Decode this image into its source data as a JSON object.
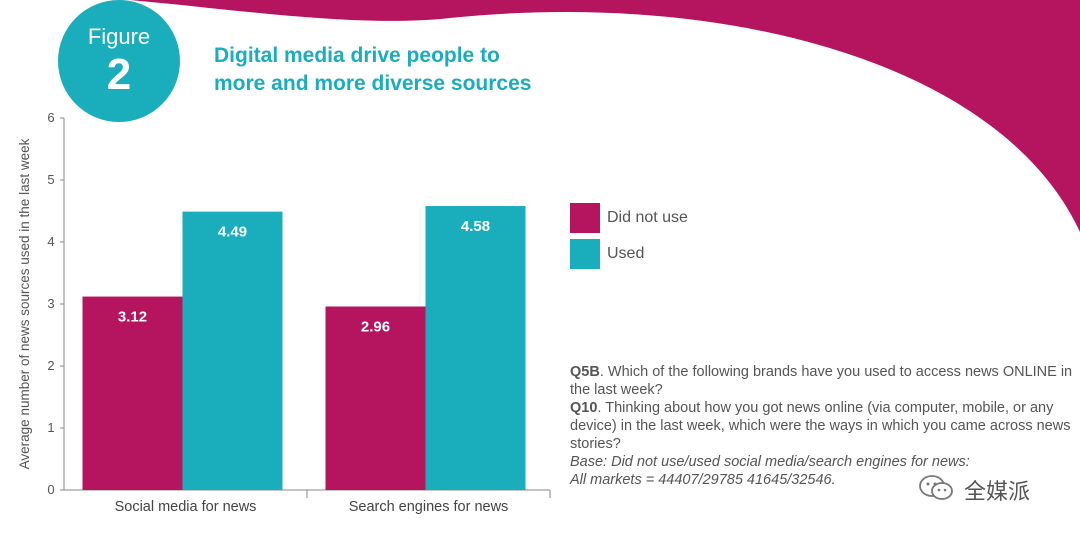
{
  "badge": {
    "word": "Figure",
    "number": "2"
  },
  "title": {
    "line1": "Digital media drive people to",
    "line2": "more and more diverse sources"
  },
  "colors": {
    "did_not_use": "#b5155f",
    "used": "#1aaebd",
    "accent_bg": "#b5155f"
  },
  "chart_data": {
    "type": "bar",
    "title": "Digital media drive people to more and more diverse sources",
    "categories": [
      "Social media for news",
      "Search engines for news"
    ],
    "series": [
      {
        "name": "Did not use",
        "values": [
          3.12,
          2.96
        ],
        "labels": [
          "3.12",
          "2.96"
        ]
      },
      {
        "name": "Used",
        "values": [
          4.49,
          4.58
        ],
        "labels": [
          "4.49",
          "4.58"
        ]
      }
    ],
    "xlabel": "",
    "ylabel": "Average number of news sources used in the last week",
    "ylim": [
      0,
      6
    ],
    "yticks": [
      "0",
      "1",
      "2",
      "3",
      "4",
      "5",
      "6"
    ],
    "legend": "right"
  },
  "notes": {
    "q5b_label": "Q5B",
    "q5b_text": ". Which of the following brands have you used to access news ONLINE in the last week?",
    "q10_label": "Q10",
    "q10_text": ". Thinking about how you got news online (via computer, mobile, or any device) in the last week, which were the ways in which you came across news stories?",
    "base_line1": "Base: Did not use/used social media/search engines for news:",
    "base_line2": "All markets = 44407/29785 41645/32546."
  },
  "watermark": {
    "text": "全媒派"
  }
}
